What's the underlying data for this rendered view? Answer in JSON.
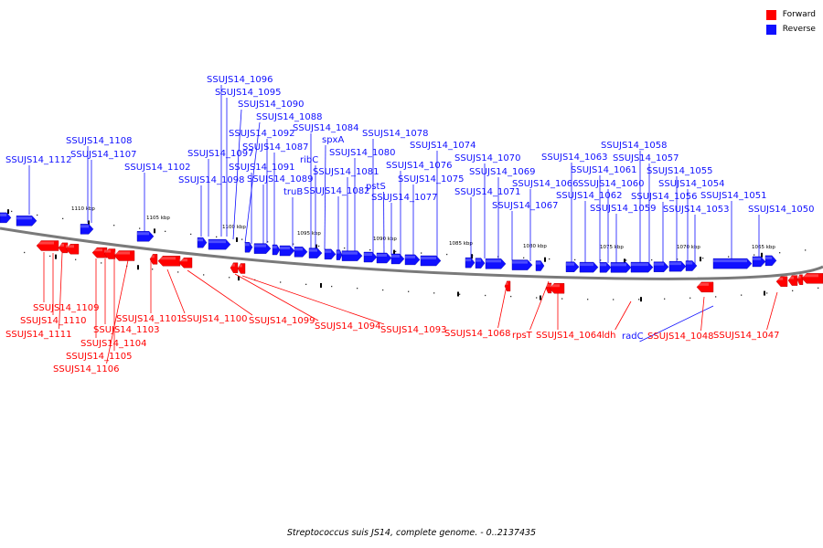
{
  "colors": {
    "forward": "#ff0000",
    "reverse": "#1010ff",
    "backbone": "#7a7a7a"
  },
  "legend": [
    {
      "label": "Forward",
      "color": "#ff0000"
    },
    {
      "label": "Reverse",
      "color": "#1010ff"
    }
  ],
  "caption": "Streptococcus suis JS14, complete genome. - 0..2137435",
  "scale_labels": [
    "1110 kbp",
    "1105 kbp",
    "1100 kbp",
    "1095 kbp",
    "1090 kbp",
    "1085 kbp",
    "1080 kbp",
    "1075 kbp",
    "1070 kbp",
    "1065 kbp"
  ],
  "reverse_labels": [
    "SSUJS14_1112",
    "SSUJS14_1108",
    "SSUJS14_1107",
    "SSUJS14_1102",
    "SSUJS14_1096",
    "SSUJS14_1095",
    "SSUJS14_1090",
    "SSUJS14_1088",
    "SSUJS14_1092",
    "SSUJS14_1097",
    "SSUJS14_1098",
    "SSUJS14_1084",
    "SSUJS14_1087",
    "SSUJS14_1091",
    "SSUJS14_1089",
    "ribC",
    "spxA",
    "truB",
    "SSUJS14_1082",
    "SSUJS14_1080",
    "SSUJS14_1081",
    "SSUJS14_1078",
    "pstS",
    "SSUJS14_1076",
    "SSUJS14_1077",
    "SSUJS14_1075",
    "SSUJS14_1074",
    "SSUJS14_1071",
    "SSUJS14_1070",
    "SSUJS14_1069",
    "SSUJS14_1066",
    "SSUJS14_1067",
    "SSUJS14_1063",
    "SSUJS14_1062",
    "SSUJS14_1061",
    "SSUJS14_1060",
    "SSUJS14_1059",
    "SSUJS14_1058",
    "SSUJS14_1057",
    "SSUJS14_1056",
    "SSUJS14_1055",
    "SSUJS14_1054",
    "SSUJS14_1053",
    "SSUJS14_1051",
    "SSUJS14_1050",
    "radC"
  ],
  "forward_labels": [
    "SSUJS14_1109",
    "SSUJS14_1110",
    "SSUJS14_1111",
    "SSUJS14_1101",
    "SSUJS14_1103",
    "SSUJS14_1104",
    "SSUJS14_1105",
    "SSUJS14_1106",
    "SSUJS14_1100",
    "SSUJS14_1099",
    "SSUJS14_1094",
    "SSUJS14_1093",
    "SSUJS14_1068",
    "rpsT",
    "SSUJS14_1064",
    "ldh",
    "SSUJS14_1048",
    "SSUJS14_1047"
  ]
}
